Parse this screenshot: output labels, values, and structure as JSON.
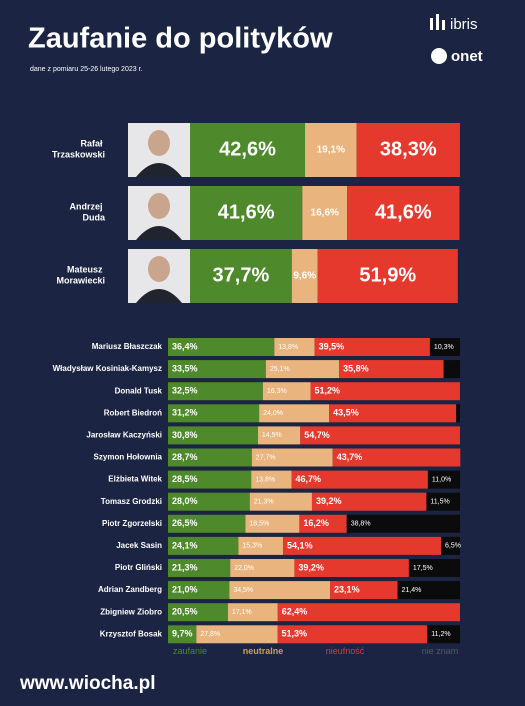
{
  "header": {
    "title": "Zaufanie do polityków",
    "subtitle": "dane z pomiaru 25-26 lutego 2023 r.",
    "logos": [
      "ibris",
      "onet"
    ]
  },
  "footer": "www.wiocha.pl",
  "chart_data": [
    {
      "type": "stacked_bar",
      "orientation": "horizontal",
      "xlim": [
        0,
        100
      ],
      "categories": [
        "Rafał Trzaskowski",
        "Andrzej Duda",
        "Mateusz Morawiecki"
      ],
      "series": [
        {
          "color": "#4e8a2c",
          "values": [
            42.6,
            41.6,
            37.7
          ],
          "value_labels": [
            "42,6%",
            "41,6%",
            "37,7%"
          ]
        },
        {
          "color": "#e9b47e",
          "values": [
            19.1,
            16.6,
            9.6
          ],
          "value_labels": [
            "19,1%",
            "16,6%",
            "9,6%"
          ]
        },
        {
          "color": "#e5392e",
          "values": [
            38.3,
            41.6,
            51.9
          ],
          "value_labels": [
            "38,3%",
            "41,6%",
            "51,9%"
          ]
        }
      ]
    },
    {
      "type": "stacked_bar",
      "orientation": "horizontal",
      "xlim": [
        0,
        100
      ],
      "categories": [
        "Mariusz Błaszczak",
        "Władysław Kosiniak-Kamysz",
        "Donald Tusk",
        "Robert Biedroń",
        "Jarosław Kaczyński",
        "Szymon Hołownia",
        "Elżbieta Witek",
        "Tomasz Grodzki",
        "Piotr Zgorzelski",
        "Jacek Sasin",
        "Piotr Gliński",
        "Adrian Zandberg",
        "Zbigniew Ziobro",
        "Krzysztof Bosak"
      ],
      "series": [
        {
          "name": "zaufanie",
          "color": "#4e8a2c",
          "legend_color": "#4e8a2c",
          "values": [
            36.4,
            33.5,
            32.5,
            31.2,
            30.8,
            28.7,
            28.5,
            28.0,
            26.5,
            24.1,
            21.3,
            21.0,
            20.5,
            9.7
          ],
          "value_labels": [
            "36,4%",
            "33,5%",
            "32,5%",
            "31,2%",
            "30,8%",
            "28,7%",
            "28,5%",
            "28,0%",
            "26,5%",
            "24,1%",
            "21,3%",
            "21,0%",
            "20,5%",
            "9,7%"
          ]
        },
        {
          "name": "neutralne",
          "color": "#e9b47e",
          "legend_color": "#c9a24a",
          "values": [
            13.8,
            25.1,
            16.3,
            24.0,
            14.5,
            27.7,
            13.8,
            21.3,
            18.5,
            15.3,
            22.0,
            34.5,
            17.1,
            27.8
          ],
          "value_labels": [
            "13,8%",
            "25,1%",
            "16,3%",
            "24,0%",
            "14,5%",
            "27,7%",
            "13,8%",
            "21,3%",
            "18,5%",
            "15,3%",
            "22,0%",
            "34,5%",
            "17,1%",
            "27,8%"
          ]
        },
        {
          "name": "nieufność",
          "color": "#e5392e",
          "legend_color": "#e5392e",
          "values": [
            39.5,
            35.8,
            51.2,
            43.5,
            54.7,
            43.7,
            46.7,
            39.2,
            16.2,
            54.1,
            39.2,
            23.1,
            62.4,
            51.3
          ],
          "value_labels": [
            "39,5%",
            "35,8%",
            "51,2%",
            "43,5%",
            "54,7%",
            "43,7%",
            "46,7%",
            "39,2%",
            "16,2%",
            "54,1%",
            "39,2%",
            "23,1%",
            "62,4%",
            "51,3%"
          ]
        },
        {
          "name": "nie znam",
          "color": "#0b0b0b",
          "legend_color": "#555a66",
          "values": [
            10.3,
            5.6,
            0,
            1.3,
            0,
            0,
            11.0,
            11.5,
            38.8,
            6.5,
            17.5,
            21.4,
            0,
            11.2
          ],
          "value_labels": [
            "10,3%",
            null,
            null,
            null,
            null,
            null,
            "11,0%",
            "11,5%",
            "38,8%",
            "6,5%",
            "17,5%",
            "21,4%",
            null,
            "11,2%"
          ]
        }
      ]
    }
  ]
}
